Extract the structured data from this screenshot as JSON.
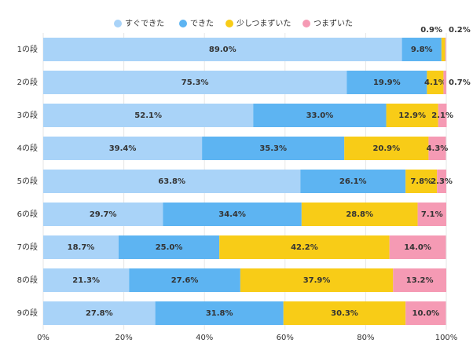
{
  "chart_data": {
    "type": "stacked-barh",
    "categories": [
      "1の段",
      "2の段",
      "3の段",
      "4の段",
      "5の段",
      "6の段",
      "7の段",
      "8の段",
      "9の段"
    ],
    "series": [
      {
        "name": "すぐできた",
        "color": "#a9d3f8",
        "values": [
          89.0,
          75.3,
          52.1,
          39.4,
          63.8,
          29.7,
          18.7,
          21.3,
          27.8
        ],
        "value_labels": [
          "89.0%",
          "75.3%",
          "52.1%",
          "39.4%",
          "63.8%",
          "29.7%",
          "18.7%",
          "21.3%",
          "27.8%"
        ]
      },
      {
        "name": "できた",
        "color": "#5db4f2",
        "values": [
          9.8,
          19.9,
          33.0,
          35.3,
          26.1,
          34.4,
          25.0,
          27.6,
          31.8
        ],
        "value_labels": [
          "9.8%",
          "19.9%",
          "33.0%",
          "35.3%",
          "26.1%",
          "34.4%",
          "25.0%",
          "27.6%",
          "31.8%"
        ]
      },
      {
        "name": "少しつまずいた",
        "color": "#f8cc17",
        "values": [
          0.9,
          4.1,
          12.9,
          20.9,
          7.8,
          28.8,
          42.2,
          37.9,
          30.3
        ],
        "value_labels": [
          "0.9%",
          "4.1%",
          "12.9%",
          "20.9%",
          "7.8%",
          "28.8%",
          "42.2%",
          "37.9%",
          "30.3%"
        ]
      },
      {
        "name": "つまずいた",
        "color": "#f59ab4",
        "values": [
          0.2,
          0.7,
          2.1,
          4.3,
          2.3,
          7.1,
          14.0,
          13.2,
          10.0
        ],
        "value_labels": [
          "0.2%",
          "0.7%",
          "2.1%",
          "4.3%",
          "2.3%",
          "7.1%",
          "14.0%",
          "13.2%",
          "10.0%"
        ]
      }
    ],
    "xlim": [
      0,
      100
    ],
    "xticks": [
      {
        "value": 0,
        "label": "0%"
      },
      {
        "value": 20,
        "label": "20%"
      },
      {
        "value": 40,
        "label": "40%"
      },
      {
        "value": 60,
        "label": "60%"
      },
      {
        "value": 80,
        "label": "80%"
      },
      {
        "value": 100,
        "label": "100%"
      }
    ],
    "grid": true
  }
}
